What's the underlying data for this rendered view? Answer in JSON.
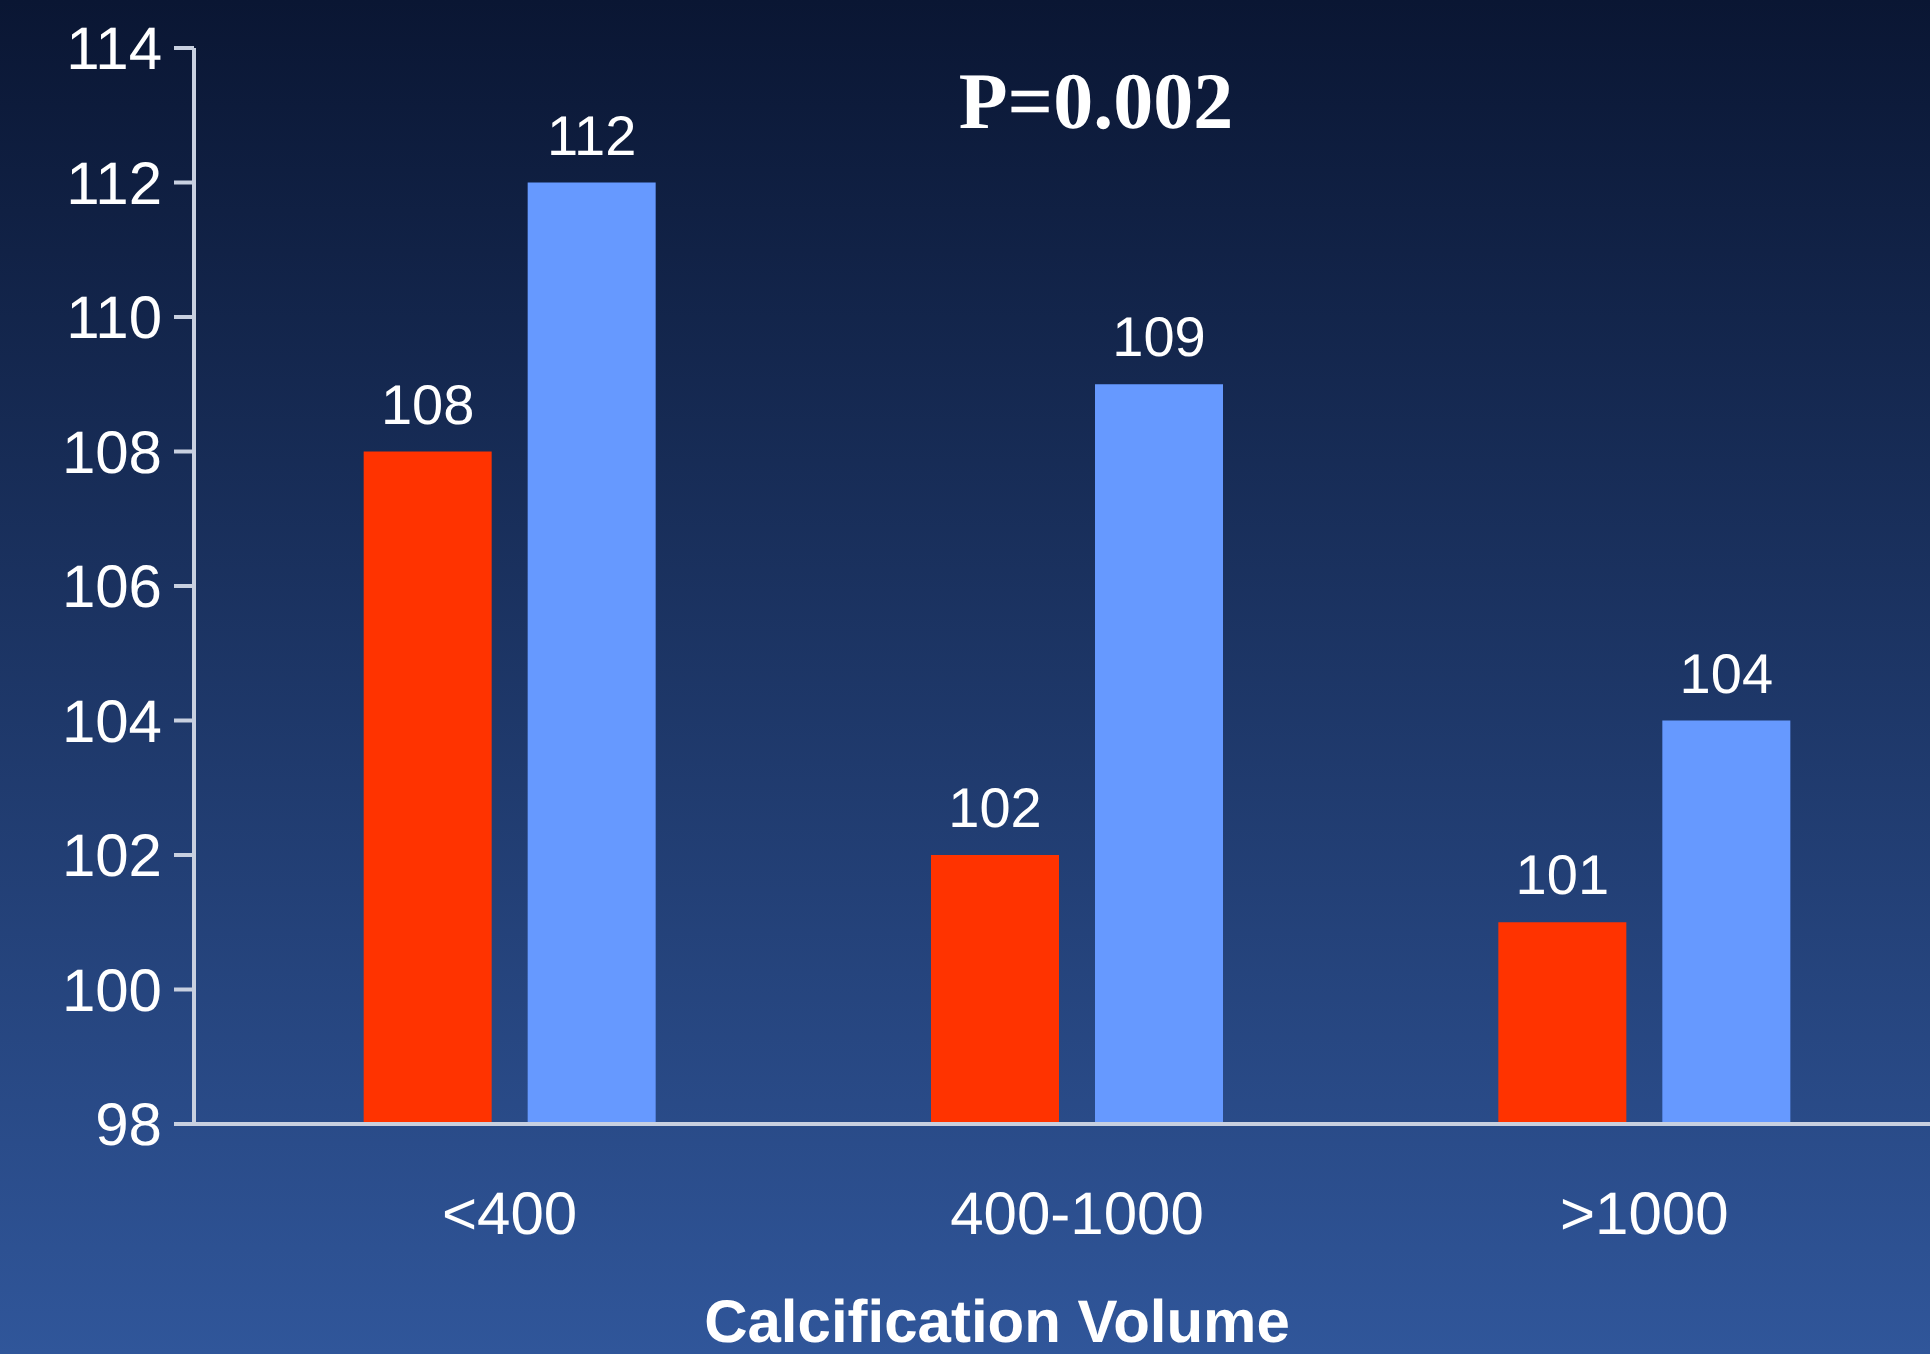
{
  "chart_data": {
    "type": "bar",
    "xlabel": "Calcification Volume",
    "categories": [
      "<400",
      "400-1000",
      ">1000"
    ],
    "series": [
      {
        "color": "#ff3300",
        "values": [
          108,
          102,
          101
        ]
      },
      {
        "color": "#6699ff",
        "values": [
          112,
          109,
          104
        ]
      }
    ],
    "ylim": [
      98,
      114
    ],
    "yticks": [
      98,
      100,
      102,
      104,
      106,
      108,
      110,
      112,
      114
    ],
    "grid": false,
    "data_labels": true,
    "annotations": [
      "P=0.002"
    ]
  }
}
